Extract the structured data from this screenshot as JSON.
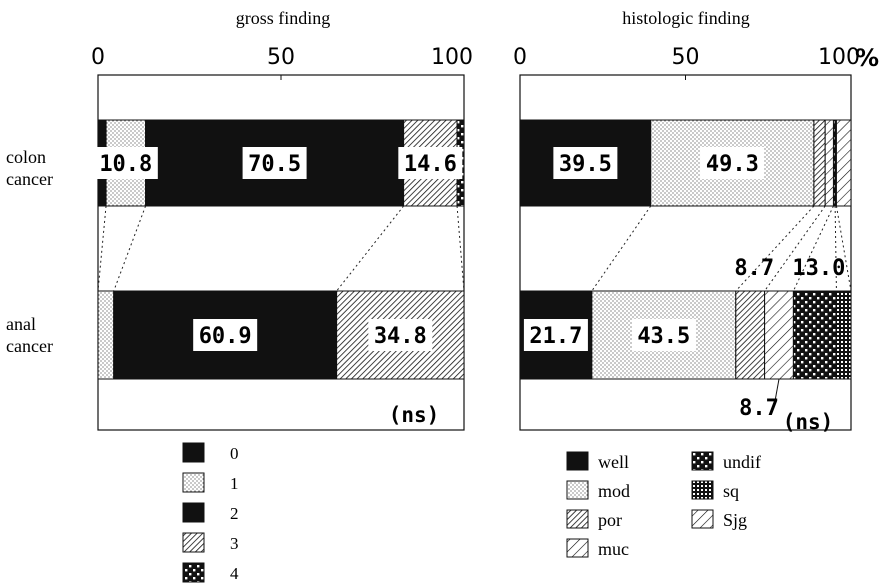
{
  "chart_data": [
    {
      "type": "bar",
      "orientation": "horizontal",
      "stacked": true,
      "title": "gross finding",
      "xlim": [
        0,
        100
      ],
      "x_ticks": [
        "0",
        "50",
        "100"
      ],
      "x_unit": "",
      "categories": [
        "colon\ncancer",
        "anal\ncancer"
      ],
      "series": [
        {
          "name": "0",
          "values": [
            2.2,
            0
          ],
          "pattern": "solid"
        },
        {
          "name": "1",
          "values": [
            10.8,
            4.3
          ],
          "pattern": "dots"
        },
        {
          "name": "2",
          "values": [
            70.5,
            60.9
          ],
          "pattern": "solid"
        },
        {
          "name": "3",
          "values": [
            14.6,
            34.8
          ],
          "pattern": "hatch"
        },
        {
          "name": "4",
          "values": [
            1.9,
            0
          ],
          "pattern": "checker"
        }
      ],
      "value_labels": [
        {
          "row": 0,
          "series": 1,
          "text": "10.8"
        },
        {
          "row": 0,
          "series": 2,
          "text": "70.5"
        },
        {
          "row": 0,
          "series": 3,
          "text": "14.6"
        },
        {
          "row": 1,
          "series": 2,
          "text": "60.9"
        },
        {
          "row": 1,
          "series": 3,
          "text": "34.8"
        }
      ],
      "note": "(ns)"
    },
    {
      "type": "bar",
      "orientation": "horizontal",
      "stacked": true,
      "title": "histologic finding",
      "xlim": [
        0,
        100
      ],
      "x_ticks": [
        "0",
        "50",
        "100"
      ],
      "x_unit": "%",
      "categories": [
        "colon\ncancer",
        "anal\ncancer"
      ],
      "series": [
        {
          "name": "well",
          "values": [
            39.5,
            21.7
          ],
          "pattern": "solid"
        },
        {
          "name": "mod",
          "values": [
            49.3,
            43.5
          ],
          "pattern": "dots"
        },
        {
          "name": "por",
          "values": [
            3.4,
            8.7
          ],
          "pattern": "hatch"
        },
        {
          "name": "muc",
          "values": [
            2.5,
            8.7
          ],
          "pattern": "hatchsparse"
        },
        {
          "name": "undif",
          "values": [
            0.5,
            13.0
          ],
          "pattern": "checker"
        },
        {
          "name": "sq",
          "values": [
            0.4,
            4.4
          ],
          "pattern": "grid"
        },
        {
          "name": "Sjg",
          "values": [
            4.4,
            0
          ],
          "pattern": "hatchsparse"
        }
      ],
      "value_labels": [
        {
          "row": 0,
          "series": 0,
          "text": "39.5"
        },
        {
          "row": 0,
          "series": 1,
          "text": "49.3"
        },
        {
          "row": 1,
          "series": 0,
          "text": "21.7"
        },
        {
          "row": 1,
          "series": 1,
          "text": "43.5"
        },
        {
          "row": 1,
          "series": 2,
          "text": "8.7",
          "outside": "above"
        },
        {
          "row": 1,
          "series": 3,
          "text": "8.7",
          "outside": "below"
        },
        {
          "row": 1,
          "series": 4,
          "text": "13.0",
          "outside": "above"
        }
      ],
      "note": "(ns)"
    }
  ],
  "legend_gross": [
    {
      "label": "0",
      "pattern": "solid"
    },
    {
      "label": "1",
      "pattern": "dots"
    },
    {
      "label": "2",
      "pattern": "solid"
    },
    {
      "label": "3",
      "pattern": "hatch"
    },
    {
      "label": "4",
      "pattern": "checker"
    }
  ],
  "legend_histo": [
    {
      "label": "well",
      "pattern": "solid"
    },
    {
      "label": "mod",
      "pattern": "dots"
    },
    {
      "label": "por",
      "pattern": "hatch"
    },
    {
      "label": "muc",
      "pattern": "hatchsparse"
    },
    {
      "label": "undif",
      "pattern": "checker"
    },
    {
      "label": "sq",
      "pattern": "grid"
    },
    {
      "label": "Sjg",
      "pattern": "hatchsparse"
    }
  ]
}
